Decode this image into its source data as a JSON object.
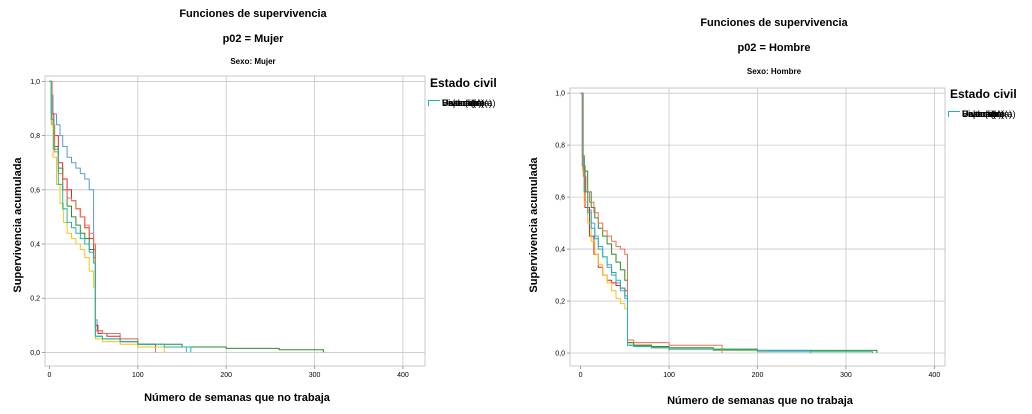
{
  "chart_data": [
    {
      "type": "line",
      "title": "Funciones de supervivencia",
      "subtitle": "p02 = Mujer",
      "panel_label": "Sexo: Mujer",
      "xlabel": "Número de semanas que no trabaja",
      "ylabel": "Supervivencia acumulada",
      "xlim": [
        -5,
        425
      ],
      "ylim": [
        -0.05,
        1.02
      ],
      "xticks": [
        0,
        100,
        200,
        300,
        400
      ],
      "yticks": [
        "0,0",
        "0,2",
        "0,4",
        "0,6",
        "0,8",
        "1,0"
      ],
      "grid": true,
      "legend_title": "Estado civil",
      "legend_position": "right",
      "series": [
        {
          "name": "Casado(a)",
          "color": "#5b9bd5",
          "x": [
            0,
            2,
            4,
            8,
            12,
            15,
            20,
            25,
            30,
            35,
            40,
            45,
            50,
            52,
            54,
            60,
            80,
            100,
            120,
            155
          ],
          "y": [
            1.0,
            0.95,
            0.88,
            0.84,
            0.8,
            0.76,
            0.72,
            0.7,
            0.68,
            0.66,
            0.64,
            0.6,
            0.4,
            0.12,
            0.08,
            0.07,
            0.05,
            0.03,
            0.02,
            0.0
          ]
        },
        {
          "name": "Separado(a)",
          "color": "#e0262c",
          "x": [
            0,
            2,
            5,
            10,
            15,
            20,
            25,
            30,
            35,
            40,
            45,
            50,
            52,
            55,
            65,
            80,
            100,
            120
          ],
          "y": [
            1.0,
            0.88,
            0.8,
            0.7,
            0.64,
            0.6,
            0.56,
            0.53,
            0.5,
            0.46,
            0.42,
            0.38,
            0.1,
            0.07,
            0.06,
            0.04,
            0.03,
            0.0
          ]
        },
        {
          "name": "Divorciado(a)",
          "color": "#2e8b2e",
          "x": [
            0,
            2,
            5,
            10,
            15,
            20,
            25,
            30,
            35,
            40,
            45,
            50,
            52,
            60,
            80,
            100,
            150,
            200,
            260,
            310
          ],
          "y": [
            1.0,
            0.86,
            0.76,
            0.68,
            0.6,
            0.54,
            0.5,
            0.47,
            0.44,
            0.42,
            0.38,
            0.35,
            0.06,
            0.05,
            0.04,
            0.03,
            0.02,
            0.015,
            0.01,
            0.0
          ]
        },
        {
          "name": "Viudo(a)",
          "color": "#f07050",
          "x": [
            0,
            3,
            6,
            10,
            15,
            20,
            25,
            30,
            35,
            40,
            45,
            50,
            52,
            60,
            80,
            100,
            120
          ],
          "y": [
            1.0,
            0.84,
            0.74,
            0.66,
            0.6,
            0.57,
            0.56,
            0.53,
            0.5,
            0.47,
            0.44,
            0.4,
            0.08,
            0.07,
            0.05,
            0.02,
            0.0
          ]
        },
        {
          "name": "Unión libre",
          "color": "#f2c61c",
          "x": [
            0,
            2,
            4,
            8,
            12,
            16,
            20,
            25,
            30,
            35,
            40,
            45,
            50,
            52,
            60,
            80,
            100,
            130
          ],
          "y": [
            1.0,
            0.84,
            0.72,
            0.62,
            0.55,
            0.48,
            0.44,
            0.42,
            0.4,
            0.38,
            0.35,
            0.3,
            0.24,
            0.05,
            0.04,
            0.03,
            0.02,
            0.0
          ]
        },
        {
          "name": "Soltero(a)",
          "color": "#1fb5ad",
          "x": [
            0,
            2,
            5,
            10,
            15,
            20,
            25,
            30,
            35,
            40,
            45,
            50,
            52,
            60,
            80,
            100,
            130,
            160
          ],
          "y": [
            1.0,
            0.86,
            0.75,
            0.62,
            0.53,
            0.48,
            0.46,
            0.44,
            0.42,
            0.4,
            0.37,
            0.33,
            0.06,
            0.05,
            0.04,
            0.03,
            0.02,
            0.0
          ]
        }
      ]
    },
    {
      "type": "line",
      "title": "Funciones de supervivencia",
      "subtitle": "p02 = Hombre",
      "panel_label": "Sexo: Hombre",
      "xlabel": "Número de semanas que no trabaja",
      "ylabel": "Supervivencia acumulada",
      "xlim": [
        -12,
        412
      ],
      "ylim": [
        -0.05,
        1.02
      ],
      "xticks": [
        0,
        100,
        200,
        300,
        400
      ],
      "yticks": [
        "0,0",
        "0,2",
        "0,4",
        "0,6",
        "0,8",
        "1,0"
      ],
      "grid": true,
      "legend_title": "Estado civil",
      "legend_position": "right",
      "series": [
        {
          "name": "Casado(a)",
          "color": "#5b9bd5",
          "x": [
            0,
            2,
            4,
            8,
            12,
            16,
            20,
            25,
            30,
            35,
            40,
            45,
            50,
            53,
            60,
            80,
            100,
            150,
            200,
            260
          ],
          "y": [
            1.0,
            0.75,
            0.62,
            0.55,
            0.5,
            0.45,
            0.41,
            0.37,
            0.33,
            0.3,
            0.27,
            0.24,
            0.21,
            0.03,
            0.025,
            0.02,
            0.015,
            0.01,
            0.005,
            0.0
          ]
        },
        {
          "name": "Separado(a)",
          "color": "#e0262c",
          "x": [
            0,
            2,
            5,
            10,
            15,
            20,
            25,
            30,
            35,
            40,
            45,
            50,
            53,
            60,
            80,
            100
          ],
          "y": [
            1.0,
            0.72,
            0.56,
            0.45,
            0.38,
            0.33,
            0.3,
            0.28,
            0.27,
            0.26,
            0.25,
            0.24,
            0.04,
            0.03,
            0.02,
            0.01
          ]
        },
        {
          "name": "Divorciado(a)",
          "color": "#2e8b2e",
          "x": [
            0,
            2,
            4,
            8,
            12,
            16,
            20,
            25,
            30,
            35,
            40,
            45,
            50,
            53,
            60,
            80,
            100,
            150,
            200,
            260,
            300,
            335
          ],
          "y": [
            1.0,
            0.76,
            0.7,
            0.62,
            0.56,
            0.52,
            0.48,
            0.45,
            0.42,
            0.38,
            0.35,
            0.32,
            0.28,
            0.04,
            0.03,
            0.025,
            0.02,
            0.015,
            0.01,
            0.01,
            0.01,
            0.0
          ]
        },
        {
          "name": "Viudo(a)",
          "color": "#f07050",
          "x": [
            0,
            3,
            6,
            10,
            15,
            20,
            25,
            30,
            35,
            40,
            45,
            50,
            53,
            60,
            100,
            160
          ],
          "y": [
            1.0,
            0.68,
            0.62,
            0.58,
            0.54,
            0.5,
            0.47,
            0.45,
            0.43,
            0.41,
            0.4,
            0.38,
            0.05,
            0.04,
            0.03,
            0.0
          ]
        },
        {
          "name": "Unión libre",
          "color": "#f2c61c",
          "x": [
            0,
            2,
            4,
            8,
            12,
            16,
            20,
            25,
            30,
            35,
            40,
            45,
            50,
            53,
            60,
            80,
            100,
            150,
            210
          ],
          "y": [
            1.0,
            0.7,
            0.58,
            0.5,
            0.43,
            0.38,
            0.34,
            0.3,
            0.27,
            0.24,
            0.21,
            0.19,
            0.17,
            0.03,
            0.025,
            0.02,
            0.015,
            0.01,
            0.0
          ]
        },
        {
          "name": "Soltero(a)",
          "color": "#1fb5ad",
          "x": [
            0,
            2,
            4,
            8,
            12,
            16,
            20,
            25,
            30,
            35,
            40,
            45,
            50,
            53,
            60,
            80,
            100,
            150,
            200,
            260,
            330
          ],
          "y": [
            1.0,
            0.72,
            0.62,
            0.54,
            0.48,
            0.44,
            0.4,
            0.37,
            0.34,
            0.31,
            0.28,
            0.25,
            0.22,
            0.03,
            0.025,
            0.02,
            0.015,
            0.012,
            0.01,
            0.005,
            0.0
          ]
        }
      ]
    }
  ]
}
